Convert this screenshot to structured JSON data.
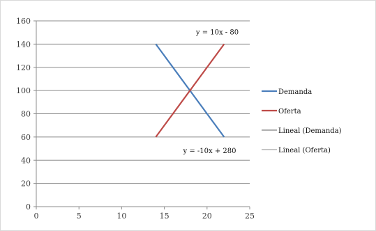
{
  "chart_data": {
    "type": "line",
    "xlim": [
      0,
      25
    ],
    "ylim": [
      0,
      160
    ],
    "x_ticks": [
      0,
      5,
      10,
      15,
      20,
      25
    ],
    "y_ticks": [
      0,
      20,
      40,
      60,
      80,
      100,
      120,
      140,
      160
    ],
    "grid": "horizontal",
    "legend_position": "right",
    "series": [
      {
        "name": "Demanda",
        "color": "#4a7ebb",
        "points": [
          [
            14,
            140
          ],
          [
            22,
            60
          ]
        ]
      },
      {
        "name": "Oferta",
        "color": "#be4b48",
        "points": [
          [
            14,
            60
          ],
          [
            22,
            140
          ]
        ]
      }
    ],
    "trendlines": [
      {
        "name": "Lineal (Demanda)",
        "color": "#7f7f7f",
        "equation": "y = -10x + 280"
      },
      {
        "name": "Lineal (Oferta)",
        "color": "#a5a5a5",
        "equation": "y = 10x - 80"
      }
    ]
  }
}
